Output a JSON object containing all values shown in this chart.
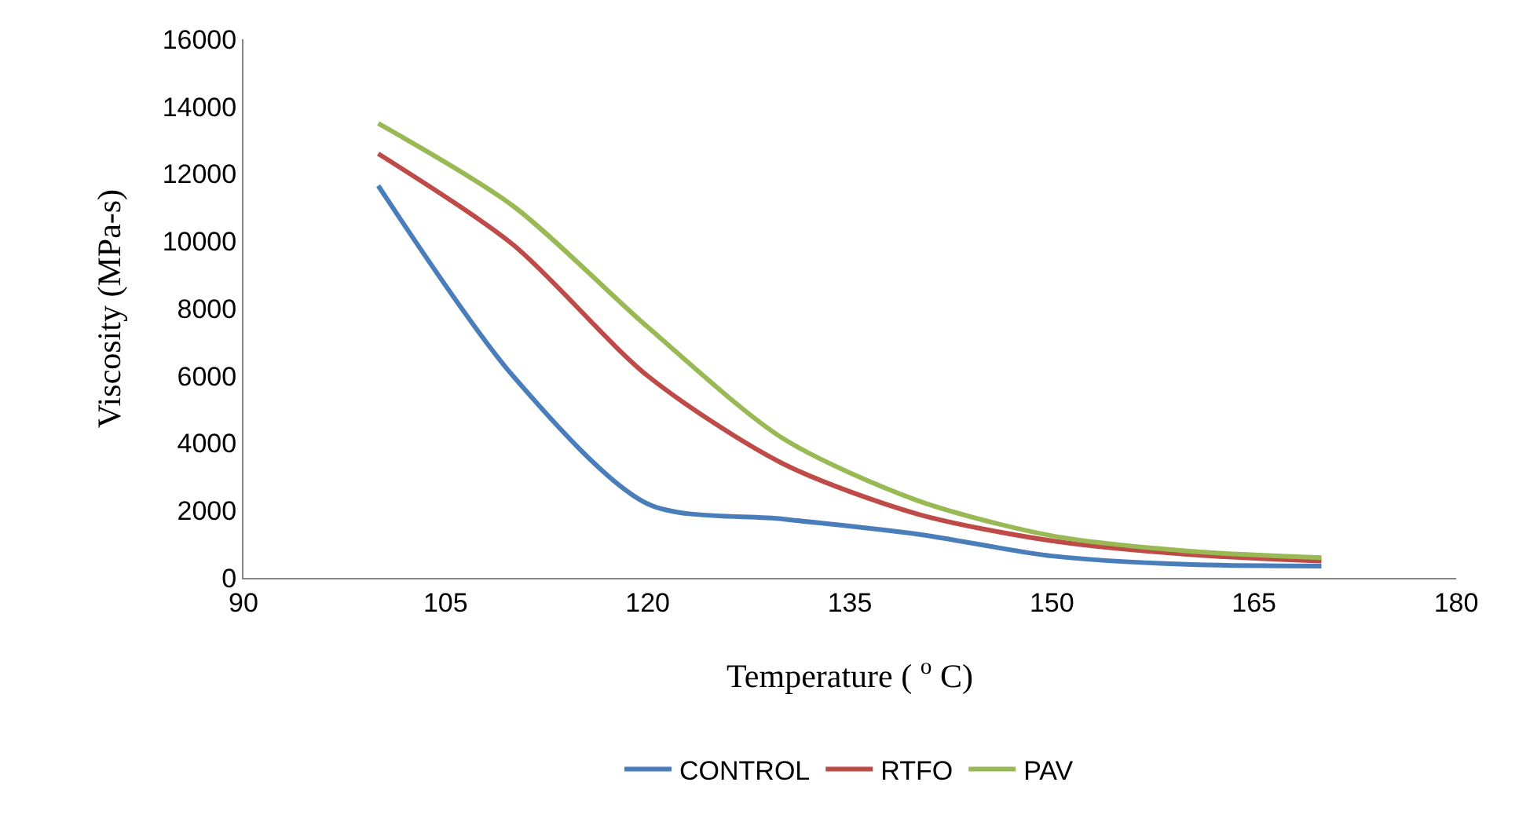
{
  "chart_data": {
    "type": "line",
    "xlabel": "Temperature ( $^{o}$ C)",
    "ylabel": "Viscosity (MPa-s)",
    "x": [
      100,
      110,
      120,
      130,
      140,
      150,
      160,
      170
    ],
    "series": [
      {
        "name": "CONTROL",
        "color": "#4a7ebb",
        "values": [
          11650,
          6000,
          2200,
          1750,
          1300,
          650,
          400,
          350
        ]
      },
      {
        "name": "RTFO",
        "color": "#be4b48",
        "values": [
          12600,
          9900,
          6000,
          3400,
          1900,
          1100,
          700,
          500
        ]
      },
      {
        "name": "PAV",
        "color": "#98b954",
        "values": [
          13500,
          11050,
          7450,
          4150,
          2300,
          1250,
          800,
          600
        ]
      }
    ],
    "xlim": [
      90,
      180
    ],
    "xticks": [
      90,
      105,
      120,
      135,
      150,
      165,
      180
    ],
    "ylim": [
      0,
      16000
    ],
    "yticks": [
      0,
      2000,
      4000,
      6000,
      8000,
      10000,
      12000,
      14000,
      16000
    ],
    "grid": false,
    "legend": "bottom",
    "marker": "none",
    "line_style": "solid"
  }
}
